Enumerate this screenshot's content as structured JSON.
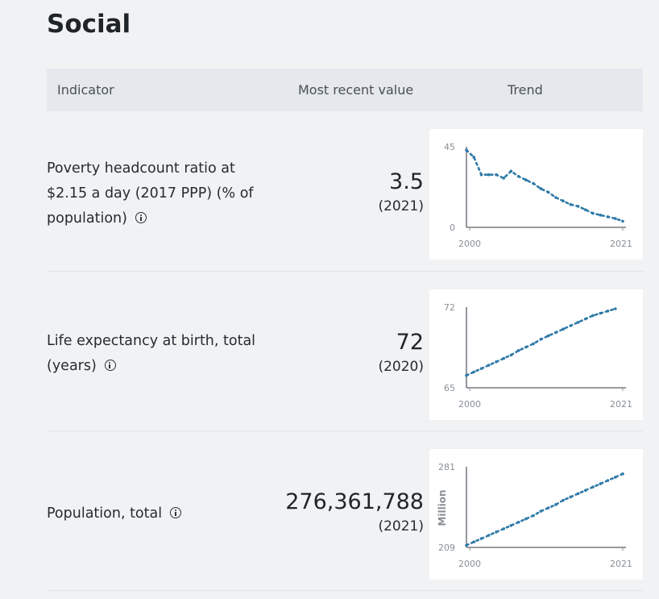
{
  "section": {
    "title": "Social"
  },
  "table": {
    "headers": {
      "indicator": "Indicator",
      "value": "Most recent value",
      "trend": "Trend"
    }
  },
  "rows": [
    {
      "indicator": "Poverty headcount ratio at $2.15 a day (2017 PPP) (% of population)",
      "value": "3.5",
      "year": "(2021)",
      "chart_data": {
        "type": "line",
        "x": [
          2000,
          2001,
          2002,
          2003,
          2004,
          2005,
          2006,
          2007,
          2008,
          2009,
          2010,
          2011,
          2012,
          2013,
          2014,
          2015,
          2016,
          2017,
          2018,
          2019,
          2020,
          2021
        ],
        "values": [
          44,
          40,
          30,
          30,
          30,
          28,
          32,
          29,
          27,
          25,
          22,
          20,
          17,
          15,
          13,
          12,
          10,
          8,
          7,
          6,
          5,
          3.5
        ],
        "ylim": [
          0,
          45
        ],
        "ytick_labels": [
          "45",
          "0"
        ],
        "xtick_labels": [
          "2000",
          "2021"
        ],
        "ylabel": "",
        "color": "#2e7aa8"
      }
    },
    {
      "indicator": "Life expectancy at birth, total (years)",
      "value": "72",
      "year": "(2020)",
      "chart_data": {
        "type": "line",
        "x": [
          2000,
          2001,
          2002,
          2003,
          2004,
          2005,
          2006,
          2007,
          2008,
          2009,
          2010,
          2011,
          2012,
          2013,
          2014,
          2015,
          2016,
          2017,
          2018,
          2019,
          2020
        ],
        "values": [
          66.1,
          66.4,
          66.7,
          67.0,
          67.3,
          67.6,
          67.9,
          68.3,
          68.6,
          68.9,
          69.3,
          69.6,
          69.9,
          70.2,
          70.5,
          70.8,
          71.1,
          71.4,
          71.6,
          71.8,
          72.0
        ],
        "ylim": [
          65,
          72
        ],
        "ytick_labels": [
          "72",
          "65"
        ],
        "xtick_labels": [
          "2000",
          "2021"
        ],
        "ylabel": "",
        "color": "#2e7aa8"
      }
    },
    {
      "indicator": "Population, total",
      "value": "276,361,788",
      "year": "(2021)",
      "chart_data": {
        "type": "line",
        "x": [
          2000,
          2001,
          2002,
          2003,
          2004,
          2005,
          2006,
          2007,
          2008,
          2009,
          2010,
          2011,
          2012,
          2013,
          2014,
          2015,
          2016,
          2017,
          2018,
          2019,
          2020,
          2021
        ],
        "values": [
          211,
          214,
          217,
          220,
          223,
          226,
          229,
          232,
          235,
          238,
          242,
          245,
          248,
          252,
          255,
          258,
          261,
          264,
          267,
          270,
          273,
          276
        ],
        "ylim": [
          209,
          281
        ],
        "ytick_labels": [
          "281",
          "209"
        ],
        "xtick_labels": [
          "2000",
          "2021"
        ],
        "ylabel": "Million",
        "color": "#2e7aa8"
      }
    }
  ]
}
